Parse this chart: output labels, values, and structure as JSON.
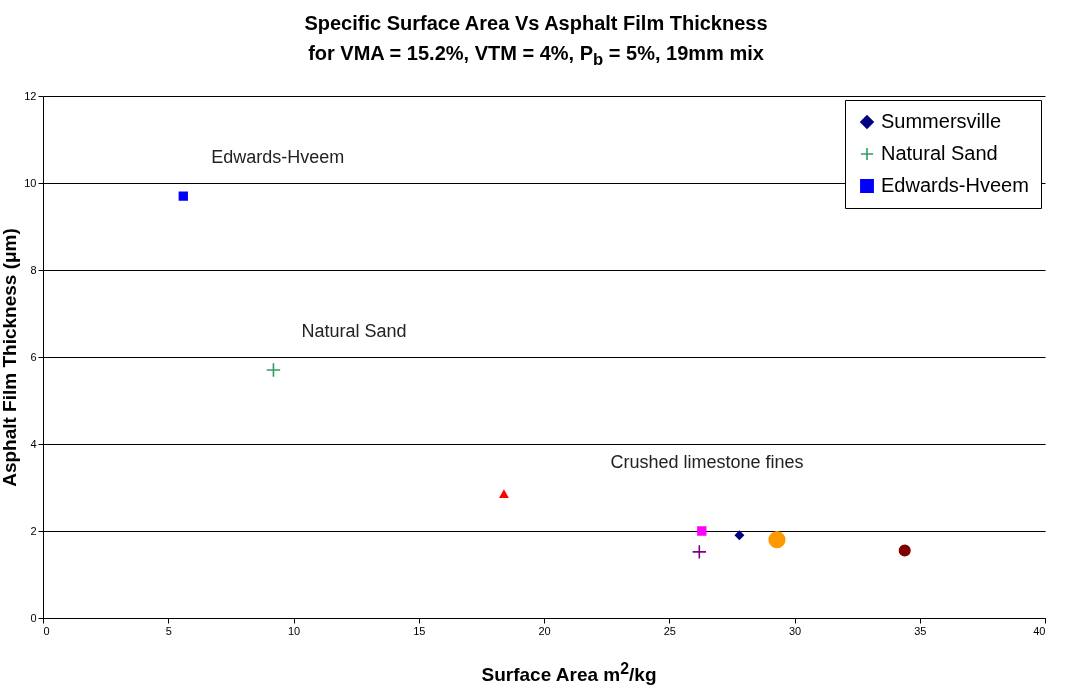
{
  "chart_data": {
    "type": "scatter",
    "title": "Specific Surface Area Vs Asphalt Film Thickness",
    "subtitle": "for VMA = 15.2%, VTM = 4%, P$_{b}$ = 5%, 19mm mix",
    "xlabel": "Surface Area m$^{2}$/kg",
    "ylabel": "Asphalt Film Thickness (μm)",
    "xlim": [
      0,
      40
    ],
    "xticks": [
      0,
      5,
      10,
      15,
      20,
      25,
      30,
      35,
      40
    ],
    "ylim": [
      0,
      12
    ],
    "yticks": [
      0,
      2,
      4,
      6,
      8,
      10,
      12
    ],
    "grid": "y",
    "legend": "top right",
    "series": [
      {
        "name": "Summersville",
        "color": "#000080",
        "marker": "diamond",
        "x": [
          27.8
        ],
        "values": [
          1.9
        ]
      },
      {
        "color": "#ff00ff",
        "marker": "square",
        "x": [
          26.3
        ],
        "values": [
          2.0
        ]
      },
      {
        "color": "#ff0000",
        "marker": "triangle",
        "x": [
          18.4
        ],
        "values": [
          2.85
        ]
      },
      {
        "color": "#ff9900",
        "marker": "circle",
        "x": [
          29.3
        ],
        "values": [
          1.8
        ]
      },
      {
        "color": "#800080",
        "marker": "cross",
        "x": [
          26.2
        ],
        "values": [
          1.52
        ]
      },
      {
        "color": "#800000",
        "marker": "circle",
        "x": [
          34.4
        ],
        "values": [
          1.55
        ]
      },
      {
        "name": "Natural Sand",
        "color": "#339966",
        "marker": "cross",
        "x": [
          9.2
        ],
        "values": [
          5.7
        ]
      },
      {
        "name": "Edwards-Hveem",
        "color": "#0000ff",
        "marker": "square",
        "x": [
          5.6
        ],
        "values": [
          9.7
        ]
      }
    ],
    "annotations": [
      {
        "text": "Edwards-Hveem",
        "x": 5.6,
        "y": 9.7
      },
      {
        "text": "Natural Sand",
        "x": 9.2,
        "y": 5.7
      },
      "Crushed limestone fines"
    ]
  }
}
